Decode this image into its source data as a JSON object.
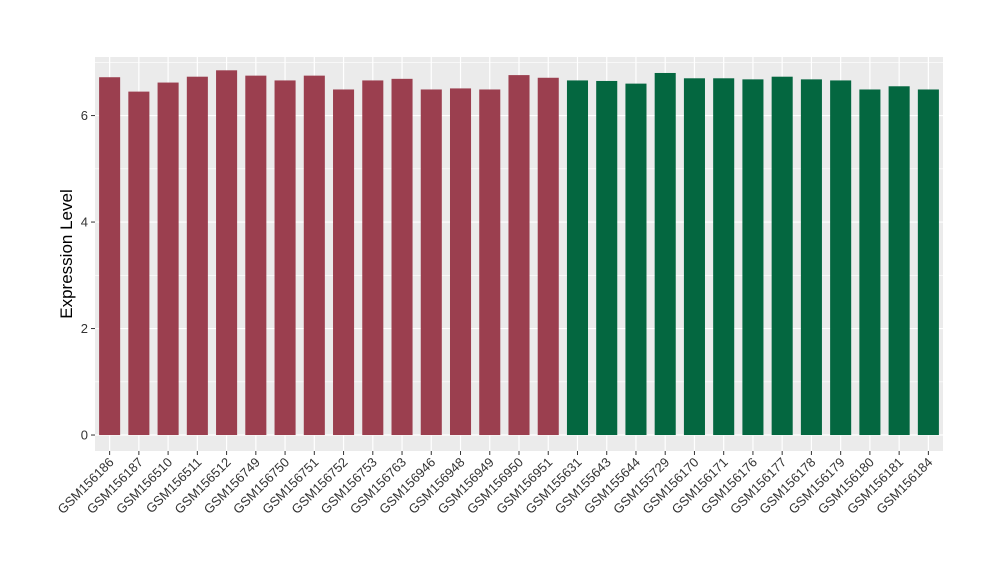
{
  "chart_data": {
    "type": "bar",
    "title": "",
    "xlabel": "",
    "ylabel": "Expression Level",
    "ylim": [
      -0.3,
      7.1
    ],
    "yticks": [
      0,
      2,
      4,
      6
    ],
    "grid": true,
    "categories": [
      "GSM156186",
      "GSM156187",
      "GSM156510",
      "GSM156511",
      "GSM156512",
      "GSM156749",
      "GSM156750",
      "GSM156751",
      "GSM156752",
      "GSM156753",
      "GSM156763",
      "GSM156946",
      "GSM156948",
      "GSM156949",
      "GSM156950",
      "GSM156951",
      "GSM155631",
      "GSM155643",
      "GSM155644",
      "GSM155729",
      "GSM156170",
      "GSM156171",
      "GSM156176",
      "GSM156177",
      "GSM156178",
      "GSM156179",
      "GSM156180",
      "GSM156181",
      "GSM156184"
    ],
    "values": [
      6.72,
      6.45,
      6.62,
      6.73,
      6.85,
      6.75,
      6.66,
      6.75,
      6.49,
      6.66,
      6.69,
      6.49,
      6.51,
      6.49,
      6.76,
      6.71,
      6.66,
      6.65,
      6.6,
      6.8,
      6.7,
      6.7,
      6.68,
      6.73,
      6.68,
      6.66,
      6.49,
      6.55,
      6.49
    ],
    "group_sizes": [
      16,
      13
    ],
    "colors": [
      "#9b3f4f",
      "#046740"
    ],
    "panel_background": "#ebebeb",
    "gridline_color": "#ffffff"
  }
}
